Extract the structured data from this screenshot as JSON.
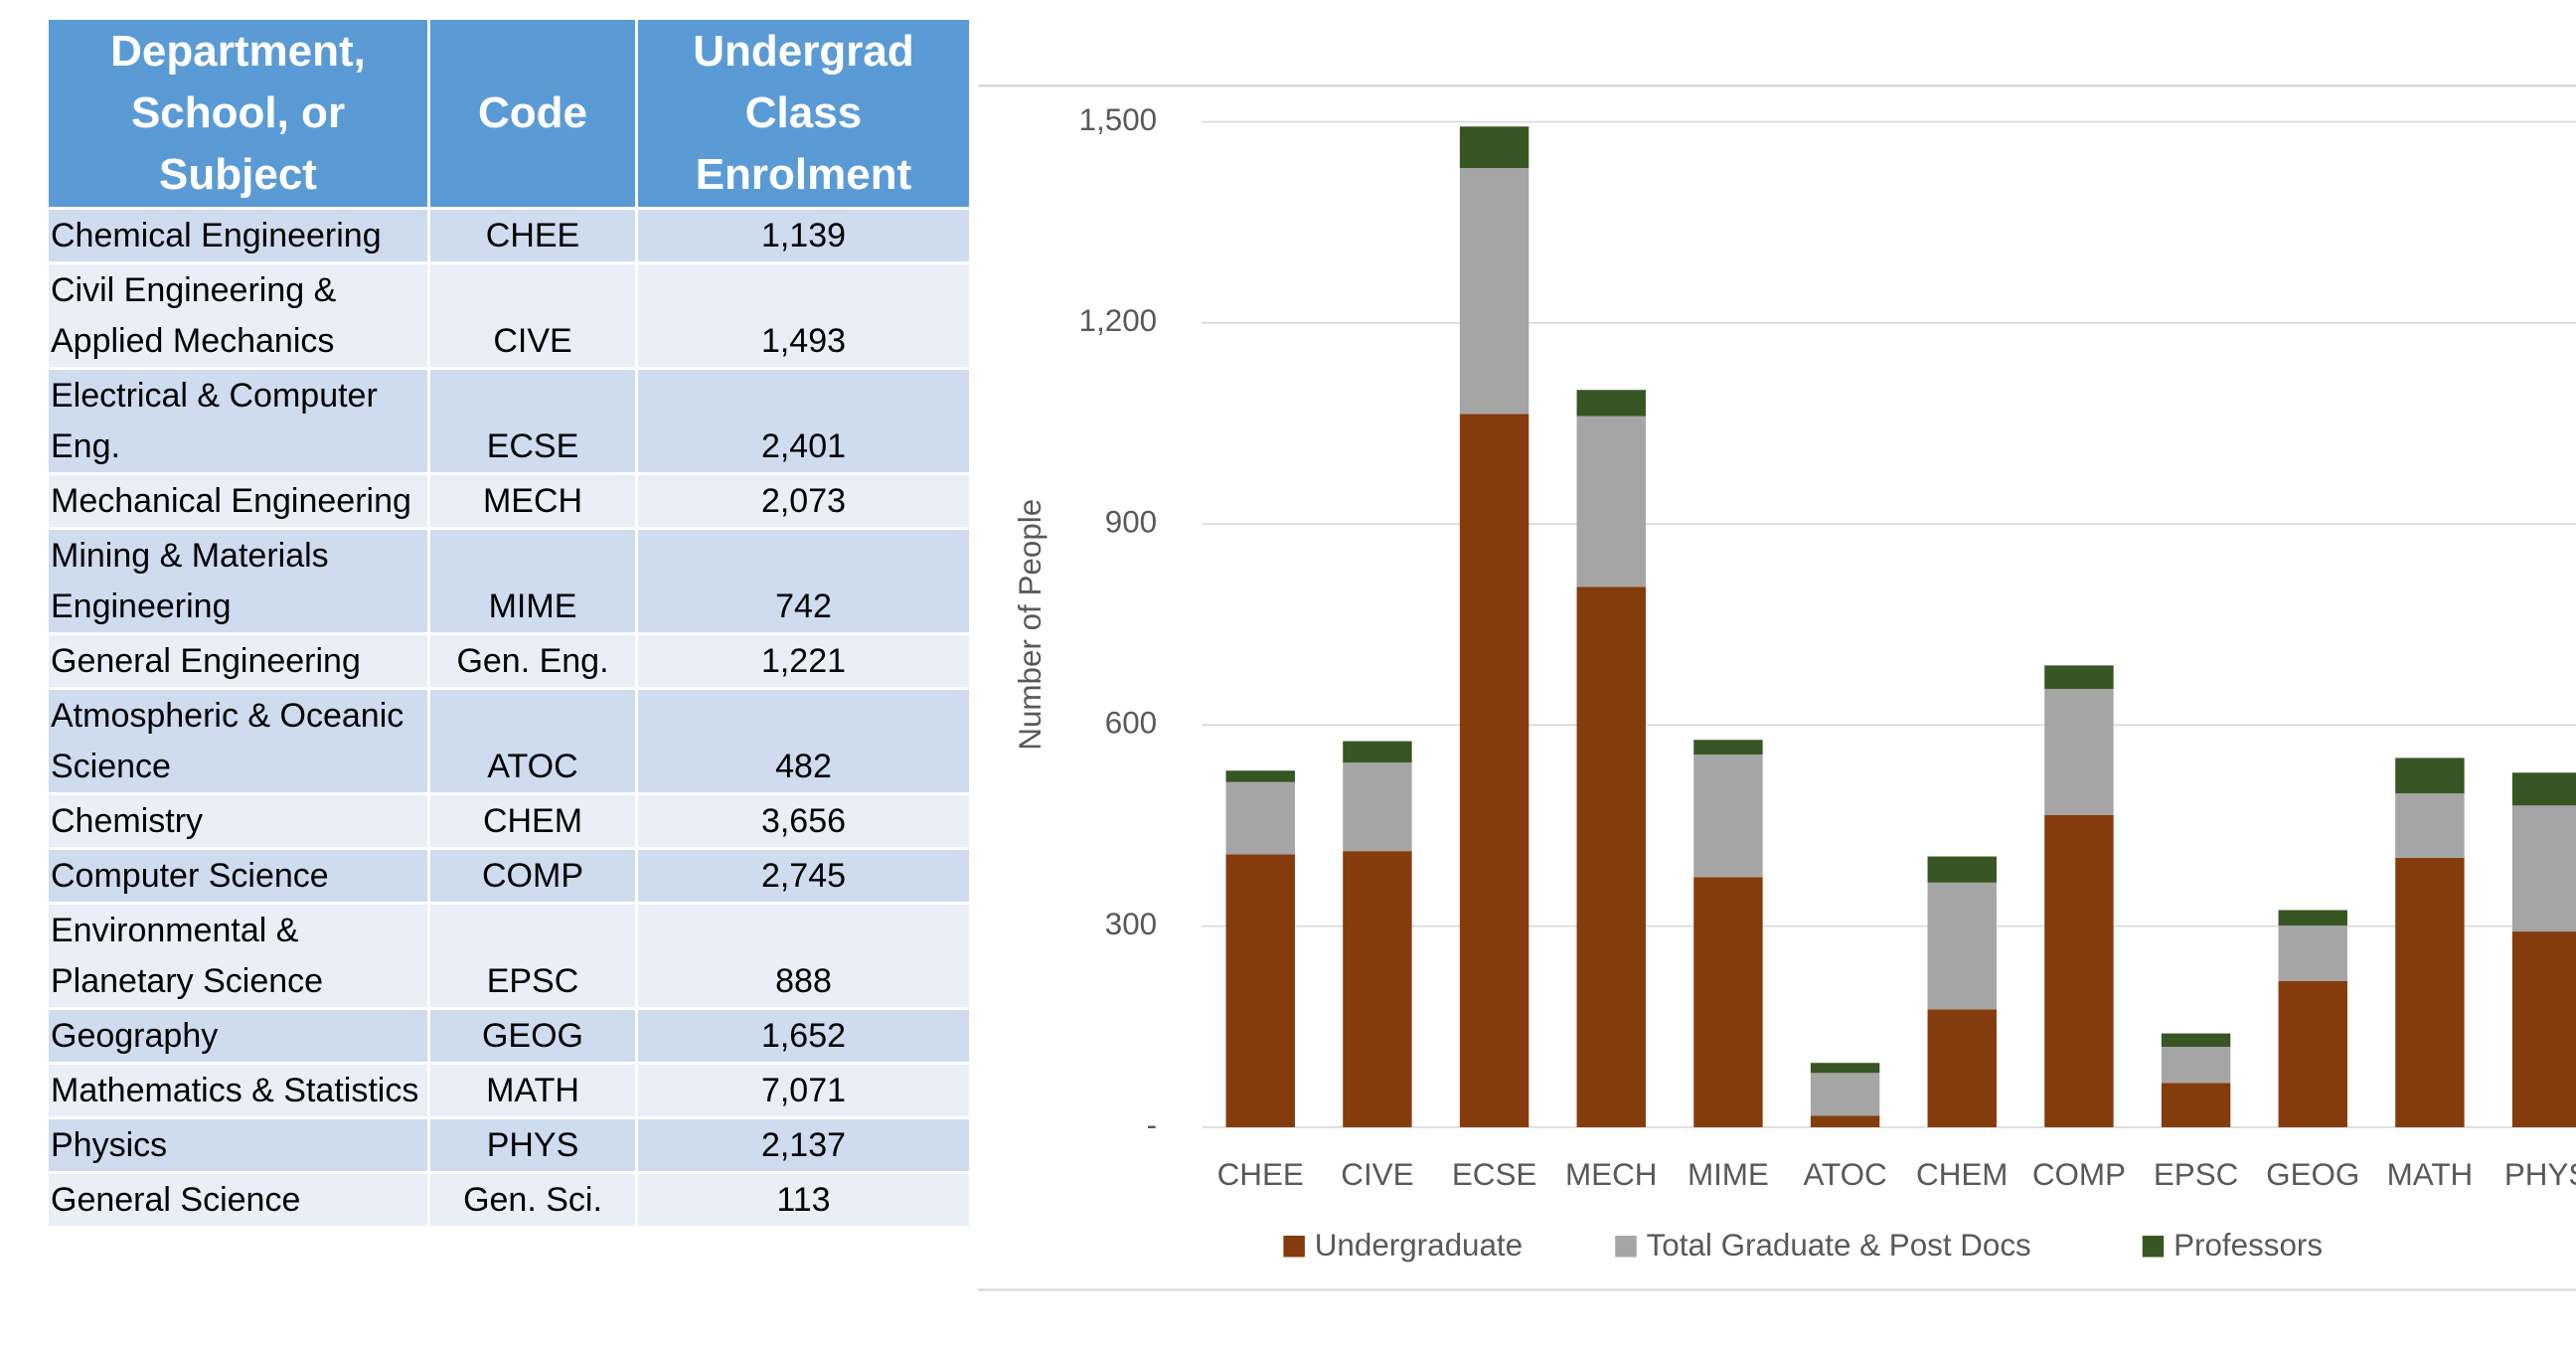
{
  "table": {
    "header": [
      "Department, School, or Subject",
      "Code",
      "Undergrad Class Enrolment"
    ],
    "rows": [
      [
        "Chemical Engineering",
        "CHEE",
        "1,139"
      ],
      [
        "Civil Engineering & Applied Mechanics",
        "CIVE",
        "1,493"
      ],
      [
        "Electrical & Computer Eng.",
        "ECSE",
        "2,401"
      ],
      [
        "Mechanical Engineering",
        "MECH",
        "2,073"
      ],
      [
        "Mining & Materials Engineering",
        "MIME",
        "742"
      ],
      [
        "General Engineering",
        "Gen. Eng.",
        "1,221"
      ],
      [
        "Atmospheric & Oceanic Science",
        "ATOC",
        "482"
      ],
      [
        "Chemistry",
        "CHEM",
        "3,656"
      ],
      [
        "Computer Science",
        "COMP",
        "2,745"
      ],
      [
        "Environmental & Planetary Science",
        "EPSC",
        "888"
      ],
      [
        "Geography",
        "GEOG",
        "1,652"
      ],
      [
        "Mathematics & Statistics",
        "MATH",
        "7,071"
      ],
      [
        "Physics",
        "PHYS",
        "2,137"
      ],
      [
        "General Science",
        "Gen. Sci.",
        "113"
      ]
    ]
  },
  "chart_data": {
    "type": "stacked_bar",
    "y_label": "Number of People",
    "categories": [
      "CHEE",
      "CIVE",
      "ECSE",
      "MECH",
      "MIME",
      "ATOC",
      "CHEM",
      "COMP",
      "EPSC",
      "GEOG",
      "MATH",
      "PHYS"
    ],
    "series": [
      {
        "name": "Undergraduate",
        "color": "#843c0c",
        "values": [
          407,
          412,
          1064,
          806,
          373,
          17,
          176,
          466,
          66,
          218,
          402,
          292
        ]
      },
      {
        "name": "Total Graduate & Post Docs",
        "color": "#a5a5a5",
        "values": [
          108,
          132,
          367,
          255,
          183,
          64,
          189,
          188,
          54,
          83,
          96,
          188
        ]
      },
      {
        "name": "Professors",
        "color": "#375623",
        "values": [
          17,
          32,
          62,
          39,
          22,
          15,
          39,
          35,
          20,
          23,
          53,
          49
        ]
      }
    ],
    "ylim": [
      0,
      1500
    ],
    "yticks": [
      {
        "value": 0,
        "label": "-"
      },
      300,
      600,
      900,
      {
        "value": 1200,
        "label": "1,200"
      },
      {
        "value": 1500,
        "label": "1,500"
      }
    ],
    "grid": true,
    "legend": "bottom"
  }
}
